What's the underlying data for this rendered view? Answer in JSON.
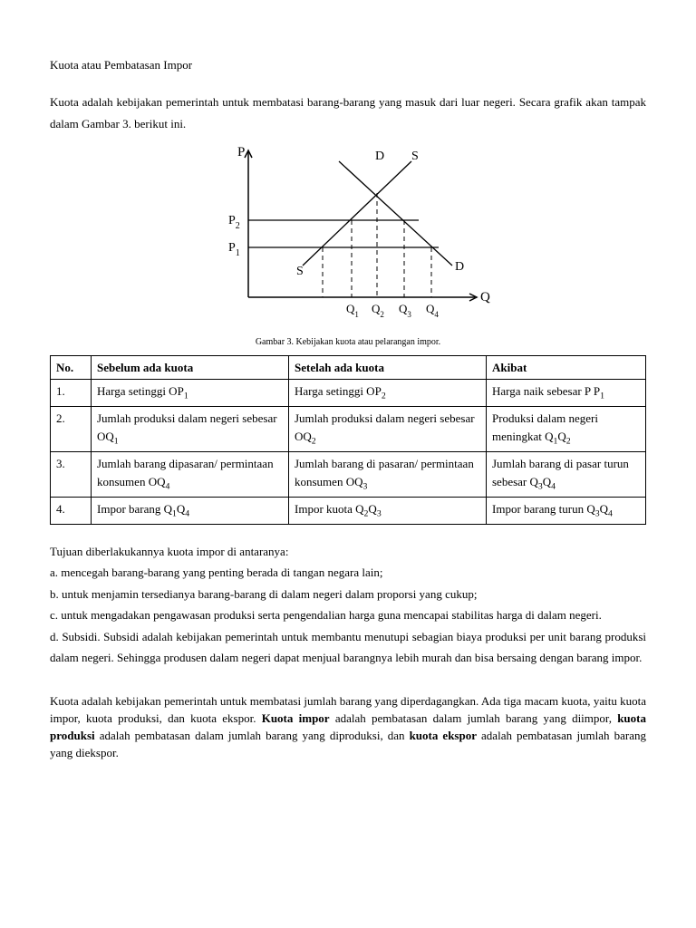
{
  "title": "Kuota atau Pembatasan Impor",
  "intro": "Kuota adalah kebijakan pemerintah untuk membatasi barang-barang yang masuk dari luar negeri. Secara grafik akan tampak dalam Gambar 3. berikut ini.",
  "chart": {
    "axis_y": "P",
    "axis_x": "Q",
    "label_D_top": "D",
    "label_S_top": "S",
    "label_S_bottom": "S",
    "label_D_bottom": "D",
    "label_P1": "P",
    "label_P1_sub": "1",
    "label_P2": "P",
    "label_P2_sub": "2",
    "label_Q1": "Q",
    "label_Q1_sub": "1",
    "label_Q2": "Q",
    "label_Q2_sub": "2",
    "label_Q3": "Q",
    "label_Q3_sub": "3",
    "label_Q4": "Q",
    "label_Q4_sub": "4",
    "stroke": "#000000"
  },
  "caption": "Gambar 3. Kebijakan kuota atau pelarangan impor.",
  "table": {
    "header": {
      "no": "No.",
      "before": "Sebelum ada kuota",
      "after": "Setelah ada kuota",
      "effect": "Akibat"
    },
    "rows": [
      {
        "no": "1.",
        "before": "Harga setinggi OP<sub>1</sub>",
        "after": "Harga setinggi OP<sub>2</sub>",
        "effect": "Harga naik sebesar P P<sub>1</sub>"
      },
      {
        "no": "2.",
        "before": "Jumlah produksi dalam negeri sebesar OQ<sub>1</sub>",
        "after": "Jumlah produksi dalam negeri sebesar OQ<sub>2</sub>",
        "effect": "Produksi dalam negeri meningkat Q<sub>1</sub>Q<sub>2</sub>"
      },
      {
        "no": "3.",
        "before": "Jumlah barang dipasaran/ permintaan konsumen OQ<sub>4</sub>",
        "after": "Jumlah barang di pasaran/ permintaan konsumen OQ<sub>3</sub>",
        "effect": "Jumlah barang di pasar turun sebesar Q<sub>3</sub>Q<sub>4</sub>"
      },
      {
        "no": "4.",
        "before": "Impor barang Q<sub>1</sub>Q<sub>4</sub>",
        "after": "Impor kuota Q<sub>2</sub>Q<sub>3</sub>",
        "effect": "Impor barang turun Q<sub>3</sub>Q<sub>4</sub>"
      }
    ]
  },
  "purpose_intro": "Tujuan diberlakukannya kuota impor di antaranya:",
  "purposes": [
    "a. mencegah barang-barang yang penting berada di tangan negara lain;",
    "b. untuk menjamin tersedianya barang-barang di dalam negeri dalam proporsi yang cukup;",
    "c. untuk mengadakan pengawasan produksi serta pengendalian harga guna mencapai stabilitas harga di dalam negeri.",
    "d. Subsidi. Subsidi adalah kebijakan pemerintah untuk membantu menutupi sebagian biaya produksi per unit barang produksi dalam negeri. Sehingga produsen dalam negeri dapat menjual barangnya lebih murah dan bisa bersaing dengan barang impor."
  ],
  "summary": "Kuota adalah kebijakan pemerintah untuk membatasi jumlah barang yang diperdagangkan.  Ada tiga macam kuota, yaitu kuota impor, kuota produksi, dan kuota ekspor. <b>Kuota impor</b> adalah pembatasan dalam jumlah barang yang diimpor, <b>kuota produksi</b> adalah pembatasan dalam jumlah barang yang diproduksi, dan <b>kuota ekspor</b> adalah pembatasan jumlah barang yang diekspor."
}
